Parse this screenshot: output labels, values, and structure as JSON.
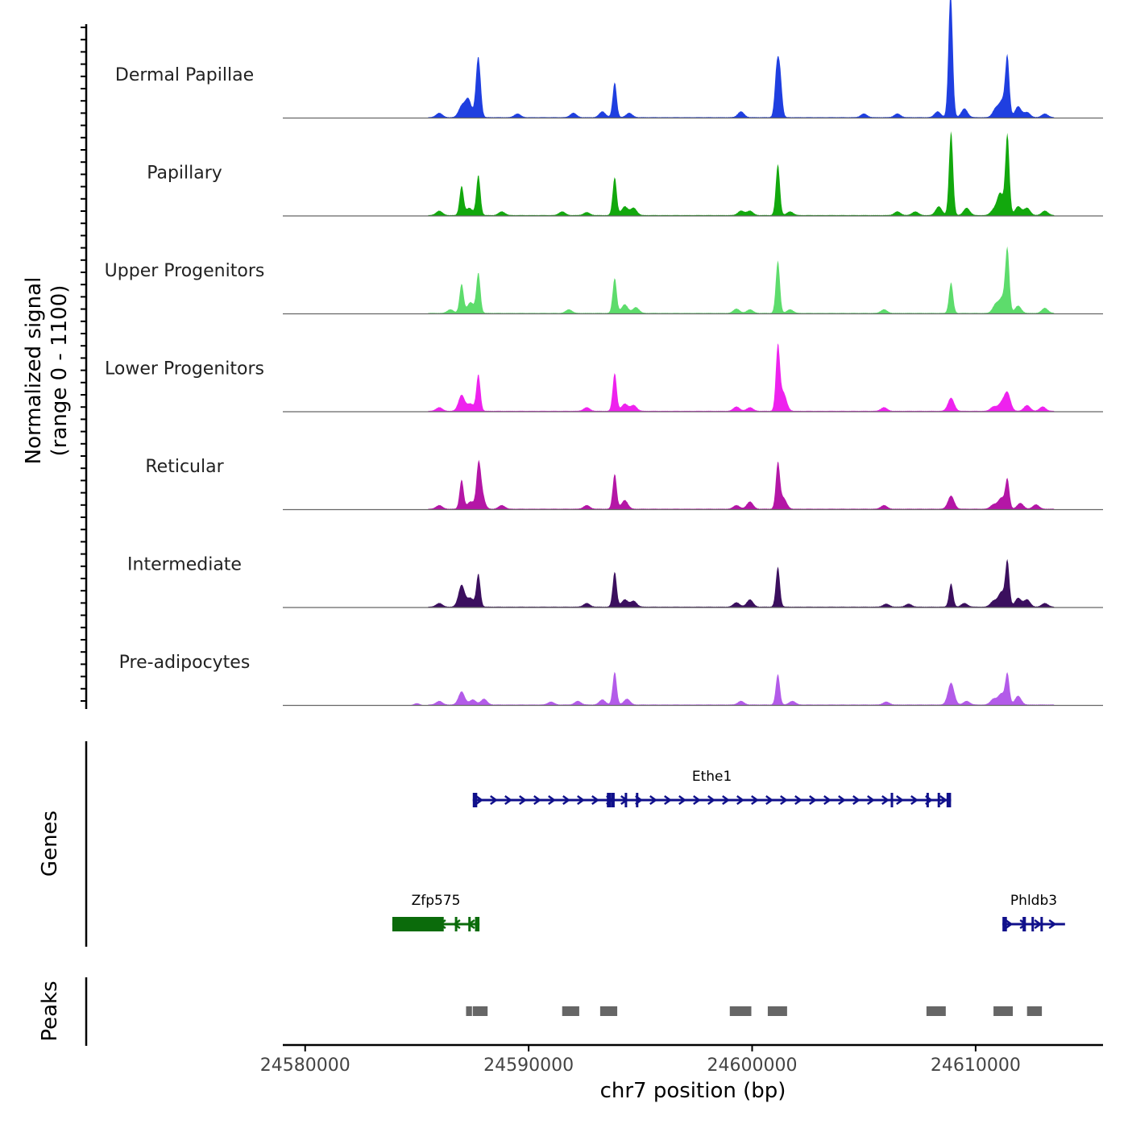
{
  "chart_data": {
    "type": "area",
    "title": "",
    "xlabel": "chr7 position (bp)",
    "ylabel_line1": "Normalized signal",
    "ylabel_line2": "(range 0 - 1100)",
    "xlim": [
      24579000,
      24615700
    ],
    "ylim": [
      0,
      1100
    ],
    "x_ticks": [
      24580000,
      24590000,
      24600000,
      24610000
    ],
    "x_tick_labels": [
      "24580000",
      "24590000",
      "24600000",
      "24610000"
    ],
    "tracks": [
      {
        "name": "Dermal Papillae",
        "color": "#1f3fe0",
        "peaks": [
          [
            24586000,
            6
          ],
          [
            24587000,
            15
          ],
          [
            24587300,
            25
          ],
          [
            24587700,
            52
          ],
          [
            24587800,
            45
          ],
          [
            24589500,
            5
          ],
          [
            24592000,
            6
          ],
          [
            24593300,
            8
          ],
          [
            24593850,
            48
          ],
          [
            24594500,
            6
          ],
          [
            24599500,
            8
          ],
          [
            24601100,
            63
          ],
          [
            24601250,
            55
          ],
          [
            24605000,
            5
          ],
          [
            24606500,
            5
          ],
          [
            24608300,
            8
          ],
          [
            24608850,
            75
          ],
          [
            24608900,
            105
          ],
          [
            24609500,
            12
          ],
          [
            24610900,
            12
          ],
          [
            24611200,
            22
          ],
          [
            24611420,
            80
          ],
          [
            24611900,
            15
          ],
          [
            24612300,
            7
          ],
          [
            24613100,
            5
          ]
        ]
      },
      {
        "name": "Papillary",
        "color": "#12a80d",
        "peaks": [
          [
            24586000,
            6
          ],
          [
            24587000,
            40
          ],
          [
            24587350,
            10
          ],
          [
            24587750,
            55
          ],
          [
            24588800,
            5
          ],
          [
            24591500,
            5
          ],
          [
            24592600,
            4
          ],
          [
            24593850,
            52
          ],
          [
            24594300,
            12
          ],
          [
            24594700,
            10
          ],
          [
            24599500,
            6
          ],
          [
            24599900,
            6
          ],
          [
            24601150,
            70
          ],
          [
            24601700,
            5
          ],
          [
            24606500,
            5
          ],
          [
            24607300,
            5
          ],
          [
            24608350,
            12
          ],
          [
            24608900,
            115
          ],
          [
            24609600,
            10
          ],
          [
            24610800,
            7
          ],
          [
            24611100,
            30
          ],
          [
            24611420,
            110
          ],
          [
            24611900,
            12
          ],
          [
            24612300,
            10
          ],
          [
            24613100,
            6
          ]
        ]
      },
      {
        "name": "Upper Progenitors",
        "color": "#5ddc6c",
        "peaks": [
          [
            24586500,
            5
          ],
          [
            24587000,
            40
          ],
          [
            24587400,
            15
          ],
          [
            24587750,
            55
          ],
          [
            24591800,
            5
          ],
          [
            24593850,
            48
          ],
          [
            24594300,
            12
          ],
          [
            24594800,
            8
          ],
          [
            24599300,
            6
          ],
          [
            24599900,
            5
          ],
          [
            24601150,
            72
          ],
          [
            24601700,
            5
          ],
          [
            24605900,
            5
          ],
          [
            24608900,
            42
          ],
          [
            24610900,
            12
          ],
          [
            24611200,
            20
          ],
          [
            24611420,
            85
          ],
          [
            24611900,
            10
          ],
          [
            24613100,
            7
          ]
        ]
      },
      {
        "name": "Lower Progenitors",
        "color": "#ee22ee",
        "peaks": [
          [
            24586000,
            5
          ],
          [
            24587000,
            22
          ],
          [
            24587400,
            10
          ],
          [
            24587750,
            50
          ],
          [
            24592600,
            5
          ],
          [
            24593850,
            52
          ],
          [
            24594300,
            10
          ],
          [
            24594700,
            8
          ],
          [
            24599300,
            6
          ],
          [
            24599900,
            5
          ],
          [
            24601150,
            88
          ],
          [
            24601400,
            25
          ],
          [
            24605900,
            5
          ],
          [
            24608900,
            18
          ],
          [
            24610800,
            6
          ],
          [
            24611150,
            10
          ],
          [
            24611420,
            25
          ],
          [
            24612300,
            8
          ],
          [
            24613000,
            6
          ]
        ]
      },
      {
        "name": "Reticular",
        "color": "#b416a6",
        "peaks": [
          [
            24586000,
            5
          ],
          [
            24587000,
            40
          ],
          [
            24587400,
            10
          ],
          [
            24587750,
            42
          ],
          [
            24587850,
            30
          ],
          [
            24588800,
            5
          ],
          [
            24592600,
            5
          ],
          [
            24593850,
            48
          ],
          [
            24594300,
            12
          ],
          [
            24599300,
            5
          ],
          [
            24599900,
            10
          ],
          [
            24601150,
            62
          ],
          [
            24601400,
            15
          ],
          [
            24605900,
            5
          ],
          [
            24608900,
            18
          ],
          [
            24610800,
            6
          ],
          [
            24611150,
            15
          ],
          [
            24611420,
            40
          ],
          [
            24612000,
            8
          ],
          [
            24612700,
            6
          ]
        ]
      },
      {
        "name": "Intermediate",
        "color": "#3b0f5e",
        "peaks": [
          [
            24586000,
            5
          ],
          [
            24587000,
            30
          ],
          [
            24587400,
            12
          ],
          [
            24587750,
            45
          ],
          [
            24592600,
            5
          ],
          [
            24593850,
            48
          ],
          [
            24594300,
            10
          ],
          [
            24594700,
            8
          ],
          [
            24599300,
            6
          ],
          [
            24599900,
            10
          ],
          [
            24601150,
            55
          ],
          [
            24606000,
            4
          ],
          [
            24607000,
            4
          ],
          [
            24608900,
            32
          ],
          [
            24609500,
            5
          ],
          [
            24610800,
            8
          ],
          [
            24611150,
            20
          ],
          [
            24611420,
            62
          ],
          [
            24611900,
            12
          ],
          [
            24612300,
            10
          ],
          [
            24613100,
            5
          ]
        ]
      },
      {
        "name": "Pre-adipocytes",
        "color": "#b35be9",
        "peaks": [
          [
            24585000,
            3
          ],
          [
            24586000,
            5
          ],
          [
            24587000,
            18
          ],
          [
            24587500,
            7
          ],
          [
            24588000,
            8
          ],
          [
            24591000,
            4
          ],
          [
            24592200,
            5
          ],
          [
            24593300,
            7
          ],
          [
            24593850,
            45
          ],
          [
            24594400,
            8
          ],
          [
            24599500,
            5
          ],
          [
            24601150,
            42
          ],
          [
            24601800,
            5
          ],
          [
            24606000,
            4
          ],
          [
            24608900,
            30
          ],
          [
            24609600,
            5
          ],
          [
            24610800,
            8
          ],
          [
            24611150,
            15
          ],
          [
            24611420,
            42
          ],
          [
            24611900,
            12
          ]
        ]
      }
    ],
    "genes_label": "Genes",
    "genes": [
      {
        "name": "Ethe1",
        "color": "#10108b",
        "strand": "+",
        "start": 24587500,
        "end": 24608900,
        "row": 1,
        "exons": [
          [
            24587500,
            24587700
          ],
          [
            24593500,
            24593700
          ],
          [
            24593700,
            24593850
          ],
          [
            24594300,
            24594400
          ],
          [
            24594800,
            24594900
          ],
          [
            24606200,
            24606300
          ],
          [
            24607800,
            24607850
          ],
          [
            24608300,
            24608400
          ],
          [
            24608700,
            24608900
          ]
        ]
      },
      {
        "name": "Zfp575",
        "color": "#0b6b0b",
        "strand": "-",
        "start": 24583900,
        "end": 24587800,
        "row": 2,
        "exons": [
          [
            24583900,
            24586200
          ],
          [
            24586700,
            24586800
          ],
          [
            24587300,
            24587400
          ],
          [
            24587600,
            24587800
          ]
        ]
      },
      {
        "name": "Phldb3",
        "color": "#10108b",
        "strand": "+",
        "start": 24611200,
        "end": 24614000,
        "row": 2,
        "exons": [
          [
            24611200,
            24611400
          ],
          [
            24612100,
            24612250
          ],
          [
            24612500,
            24612600
          ],
          [
            24612900,
            24613000
          ]
        ]
      }
    ],
    "peaks_label": "Peaks",
    "peak_regions": [
      [
        24587200,
        24587500
      ],
      [
        24587500,
        24588200
      ],
      [
        24591500,
        24592300
      ],
      [
        24593200,
        24594000
      ],
      [
        24599000,
        24600000
      ],
      [
        24600700,
        24601600
      ],
      [
        24607800,
        24608700
      ],
      [
        24610800,
        24611700
      ],
      [
        24612300,
        24613000
      ]
    ],
    "peak_color": "#666666"
  }
}
